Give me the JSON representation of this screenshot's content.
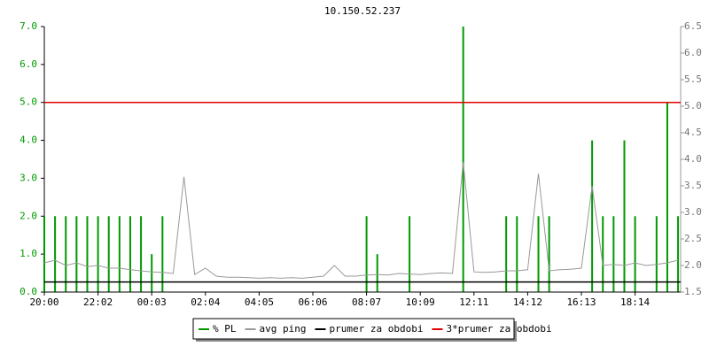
{
  "chart_data": {
    "type": "line",
    "title": "10.150.52.237",
    "categories": [
      "20:00",
      null,
      null,
      null,
      null,
      "22:02",
      null,
      null,
      null,
      null,
      "00:03",
      null,
      null,
      null,
      null,
      "02:04",
      null,
      null,
      null,
      null,
      "04:05",
      null,
      null,
      null,
      null,
      "06:06",
      null,
      null,
      null,
      null,
      "08:07",
      null,
      null,
      null,
      null,
      "10:09",
      null,
      null,
      null,
      null,
      "12:11",
      null,
      null,
      null,
      null,
      "14:12",
      null,
      null,
      null,
      null,
      "16:13",
      null,
      null,
      null,
      null,
      "18:14",
      null,
      null,
      null,
      null
    ],
    "series": [
      {
        "name": "% PL",
        "color": "#009900",
        "style": "impulse",
        "axis": "y",
        "values": [
          2,
          2,
          2,
          2,
          2,
          2,
          2,
          2,
          2,
          2,
          1,
          2,
          0,
          0,
          0,
          0,
          0,
          0,
          0,
          0,
          0,
          0,
          0,
          0,
          0,
          0,
          0,
          0,
          0,
          0,
          2,
          1,
          0,
          0,
          2,
          0,
          0,
          0,
          0,
          7,
          0,
          0,
          0,
          2,
          2,
          0,
          2,
          2,
          0,
          0,
          0,
          4,
          2,
          2,
          4,
          2,
          0,
          2,
          5,
          2
        ]
      },
      {
        "name": "avg ping",
        "color": "#999999",
        "style": "line",
        "axis": "y2",
        "values": [
          2.05,
          2.1,
          2.0,
          2.05,
          1.98,
          2.0,
          1.95,
          1.95,
          1.92,
          1.9,
          1.88,
          1.87,
          1.85,
          3.67,
          1.83,
          1.95,
          1.8,
          1.78,
          1.78,
          1.77,
          1.76,
          1.77,
          1.76,
          1.77,
          1.76,
          1.78,
          1.8,
          2.0,
          1.8,
          1.8,
          1.82,
          1.83,
          1.82,
          1.85,
          1.84,
          1.83,
          1.85,
          1.86,
          1.85,
          3.95,
          1.88,
          1.87,
          1.88,
          1.9,
          1.9,
          1.92,
          3.73,
          1.9,
          1.92,
          1.93,
          1.95,
          3.5,
          2.0,
          2.02,
          2.0,
          2.05,
          2.0,
          2.02,
          2.05,
          2.1
        ]
      }
    ],
    "reference_lines": [
      {
        "name": "prumer za obdobi",
        "color": "#000000",
        "axis": "y2",
        "value": 1.69
      },
      {
        "name": "3*prumer za obdobi",
        "color": "#e00000",
        "axis": "y2",
        "value": 5.07
      }
    ],
    "ylim": [
      0,
      7
    ],
    "yticks": [
      {
        "value": 0,
        "label": "0.0"
      },
      {
        "value": 1,
        "label": "1.0"
      },
      {
        "value": 2,
        "label": "2.0"
      },
      {
        "value": 3,
        "label": "3.0"
      },
      {
        "value": 4,
        "label": "4.0"
      },
      {
        "value": 5,
        "label": "5.0"
      },
      {
        "value": 6,
        "label": "6.0"
      },
      {
        "value": 7,
        "label": "7.0"
      }
    ],
    "y2lim": [
      1.5,
      6.5
    ],
    "y2ticks": [
      1.5,
      {
        "value": 2,
        "label": "2.0"
      },
      2.5,
      {
        "value": 3,
        "label": "3.0"
      },
      3.5,
      {
        "value": 4,
        "label": "4.0"
      },
      4.5,
      {
        "value": 5,
        "label": "5.0"
      },
      5.5,
      {
        "value": 6,
        "label": "6.0"
      },
      6.5
    ],
    "ytick_color": "#009900",
    "y2tick_color": "#999999"
  }
}
